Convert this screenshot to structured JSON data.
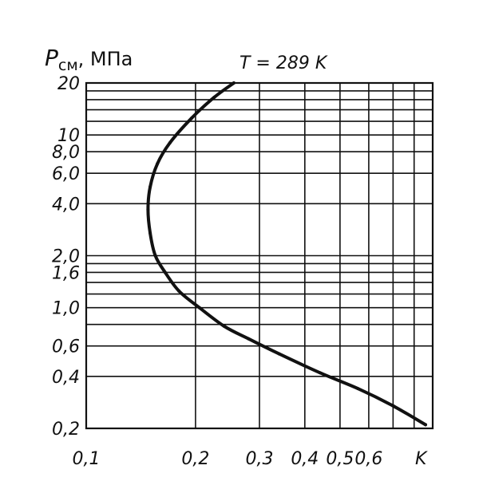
{
  "chart_data": {
    "type": "line",
    "title": "T = 289 K",
    "xlabel": "K",
    "ylabel_main": "P",
    "ylabel_sub": "см",
    "ylabel_unit": ", МПа",
    "x_scale": "log",
    "y_scale": "log",
    "xlim": [
      0.1,
      0.9
    ],
    "ylim": [
      0.2,
      20
    ],
    "grid": true,
    "x_ticks": [
      {
        "value": 0.1,
        "label": "0,1"
      },
      {
        "value": 0.2,
        "label": "0,2"
      },
      {
        "value": 0.3,
        "label": "0,3"
      },
      {
        "value": 0.4,
        "label": "0,4"
      },
      {
        "value": 0.5,
        "label": "0,5"
      },
      {
        "value": 0.6,
        "label": "0,6"
      }
    ],
    "y_ticks": [
      {
        "value": 0.2,
        "label": "0,2"
      },
      {
        "value": 0.4,
        "label": "0,4"
      },
      {
        "value": 0.6,
        "label": "0,6"
      },
      {
        "value": 1.0,
        "label": "1,0"
      },
      {
        "value": 1.6,
        "label": "1,6"
      },
      {
        "value": 2.0,
        "label": "2,0"
      },
      {
        "value": 4.0,
        "label": "4,0"
      },
      {
        "value": 6.0,
        "label": "6,0"
      },
      {
        "value": 8.0,
        "label": "8,0"
      },
      {
        "value": 10,
        "label": "10"
      },
      {
        "value": 20,
        "label": "20"
      }
    ],
    "x_grid": [
      0.2,
      0.3,
      0.4,
      0.5,
      0.6,
      0.7,
      0.8
    ],
    "y_grid": [
      0.4,
      0.6,
      0.8,
      1.0,
      1.2,
      1.4,
      1.6,
      1.8,
      2.0,
      4.0,
      6.0,
      8.0,
      10,
      12,
      14,
      16,
      18
    ],
    "series": [
      {
        "color": "#111111",
        "x": [
          0.86,
          0.7,
          0.56,
          0.44,
          0.34,
          0.28,
          0.24,
          0.205,
          0.18,
          0.165,
          0.155,
          0.15,
          0.148,
          0.15,
          0.157,
          0.17,
          0.195,
          0.225,
          0.255
        ],
        "y": [
          0.21,
          0.27,
          0.34,
          0.42,
          0.54,
          0.66,
          0.78,
          1.0,
          1.25,
          1.6,
          2.0,
          2.7,
          3.7,
          5.0,
          6.8,
          9.0,
          12.5,
          16.5,
          20.0
        ]
      }
    ]
  }
}
